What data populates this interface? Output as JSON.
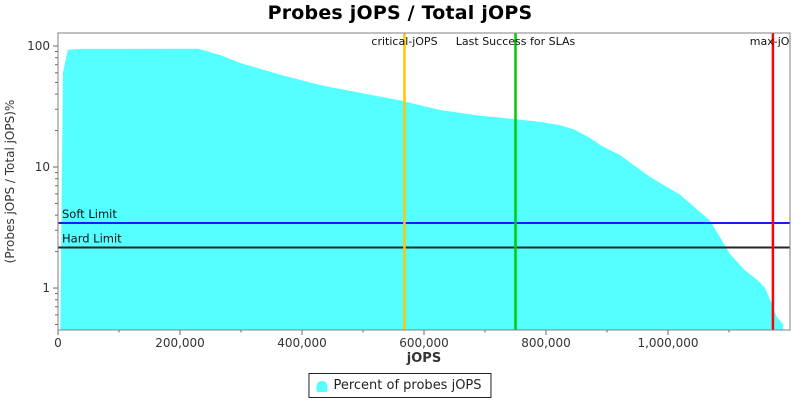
{
  "title": "Probes jOPS / Total jOPS",
  "legend": {
    "label": "Percent of probes jOPS",
    "marker_color": "#55FFFF"
  },
  "frame": {
    "border_color": "#808080",
    "tick_color": "#666666",
    "tick_label_color": "#333333",
    "annotation_label_color": "#111111"
  },
  "chart_data": {
    "type": "area",
    "title": "Probes jOPS / Total jOPS",
    "xlabel": "jOPS",
    "ylabel": "(Probes jOPS / Total jOPS)%",
    "legend_position": "bottom",
    "grid": false,
    "x_axis": {
      "min": 0,
      "max": 1200000,
      "major_ticks": [
        {
          "value": 0,
          "label": "0"
        },
        {
          "value": 200000,
          "label": "200,000"
        },
        {
          "value": 400000,
          "label": "400,000"
        },
        {
          "value": 600000,
          "label": "600,000"
        },
        {
          "value": 800000,
          "label": "800,000"
        },
        {
          "value": 1000000,
          "label": "1,000,000"
        }
      ],
      "minor_tick_step": 100000
    },
    "y_axis": {
      "scale": "log",
      "min": 0.45,
      "max": 128,
      "major_ticks": [
        {
          "value": 100,
          "label": "100"
        },
        {
          "value": 10,
          "label": "10"
        },
        {
          "value": 1,
          "label": "1"
        }
      ],
      "minor_mantissas": [
        2,
        3,
        4,
        5,
        6,
        7,
        8,
        9
      ]
    },
    "series": [
      {
        "name": "Percent of probes jOPS",
        "color": "#55FFFF",
        "points": [
          [
            4000,
            0.5
          ],
          [
            8000,
            60
          ],
          [
            16000,
            93
          ],
          [
            40000,
            94.5
          ],
          [
            230000,
            95
          ],
          [
            266000,
            84
          ],
          [
            300000,
            72
          ],
          [
            364000,
            58
          ],
          [
            430000,
            47.5
          ],
          [
            495000,
            41
          ],
          [
            561000,
            35.5
          ],
          [
            626000,
            29.6
          ],
          [
            692000,
            26.5
          ],
          [
            750000,
            24.9
          ],
          [
            790000,
            23.6
          ],
          [
            823000,
            22.2
          ],
          [
            848000,
            20.2
          ],
          [
            872000,
            17.4
          ],
          [
            889000,
            15.2
          ],
          [
            905000,
            13.8
          ],
          [
            921000,
            12.6
          ],
          [
            970000,
            8.3
          ],
          [
            1020000,
            5.9
          ],
          [
            1069000,
            3.6
          ],
          [
            1102000,
            1.9
          ],
          [
            1126000,
            1.4
          ],
          [
            1148000,
            1.15
          ],
          [
            1159000,
            1.0
          ],
          [
            1170000,
            0.75
          ],
          [
            1178000,
            0.58
          ],
          [
            1189000,
            0.5
          ]
        ]
      }
    ],
    "v_markers": [
      {
        "label": "critical-jOPS",
        "x": 568000,
        "color": "#FFC800"
      },
      {
        "label": "Last Success for SLAs",
        "x": 750000,
        "color": "#00CC00"
      },
      {
        "label": "max-jOP",
        "x": 1172000,
        "color": "#FF0000"
      }
    ],
    "h_markers": [
      {
        "label": "Soft Limit",
        "y": 3.45,
        "color": "#1A1AFF"
      },
      {
        "label": "Hard Limit",
        "y": 2.16,
        "color": "#262626"
      }
    ]
  }
}
